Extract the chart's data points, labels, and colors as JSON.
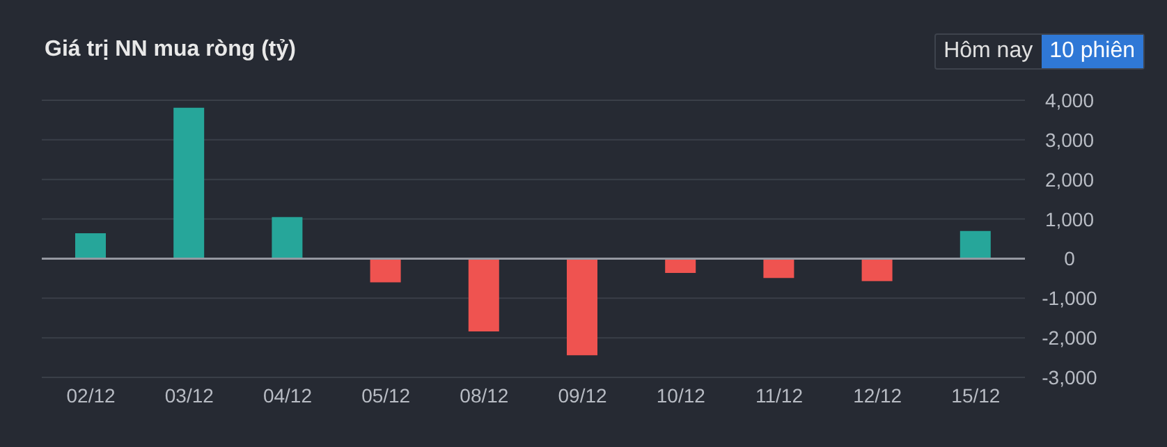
{
  "chart_data": {
    "type": "bar",
    "title": "Giá trị NN mua ròng (tỷ)",
    "categories": [
      "02/12",
      "03/12",
      "04/12",
      "05/12",
      "08/12",
      "09/12",
      "10/12",
      "11/12",
      "12/12",
      "15/12"
    ],
    "values": [
      640,
      3810,
      1050,
      -600,
      -1840,
      -2440,
      -360,
      -490,
      -570,
      700
    ],
    "colors": [
      "#26a69a",
      "#26a69a",
      "#26a69a",
      "#ef5350",
      "#ef5350",
      "#ef5350",
      "#ef5350",
      "#ef5350",
      "#ef5350",
      "#26a69a"
    ],
    "ylim": [
      -3000,
      4000
    ],
    "yticks": [
      {
        "value": -3000,
        "label": "-3,000"
      },
      {
        "value": -2000,
        "label": "-2,000"
      },
      {
        "value": -1000,
        "label": "-1,000"
      },
      0,
      {
        "value": 1000,
        "label": "1,000"
      },
      {
        "value": 2000,
        "label": "2,000"
      },
      {
        "value": 3000,
        "label": "3,000"
      },
      {
        "value": 4000,
        "label": "4,000"
      }
    ],
    "grid": "y",
    "ref_lines": [
      {
        "axis": "y",
        "value": 0,
        "color": "#9598a1"
      }
    ],
    "annotations": [
      "Hôm nay",
      "10 phiên"
    ]
  }
}
